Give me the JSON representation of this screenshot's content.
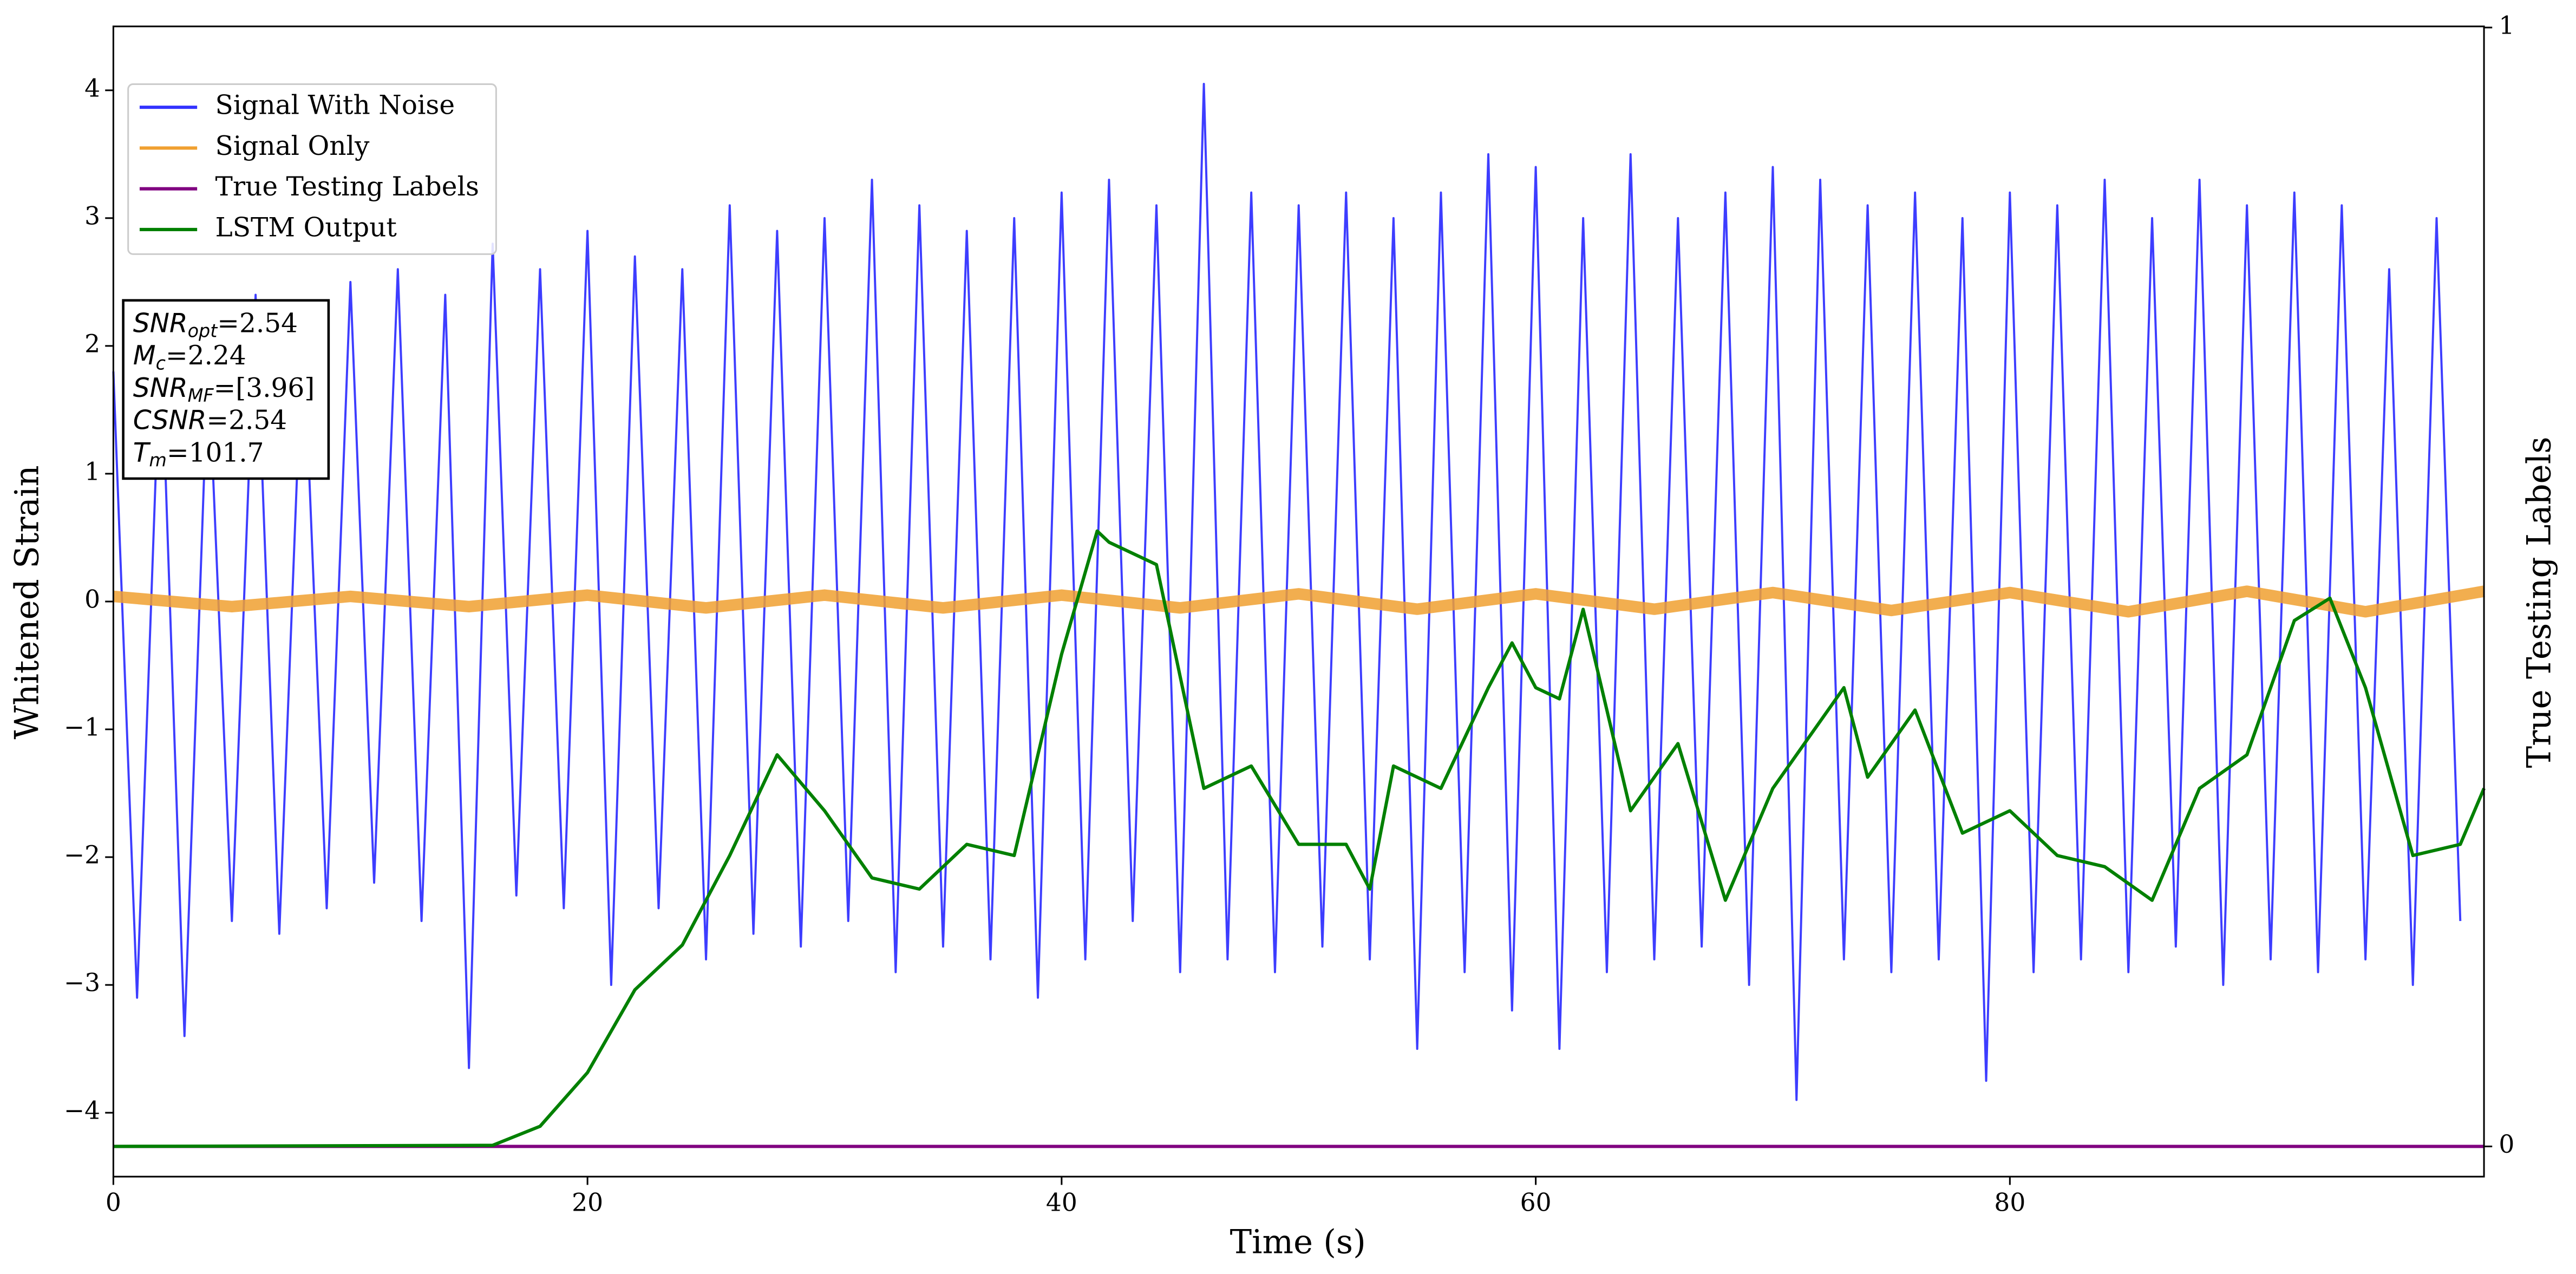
{
  "chart_data": {
    "type": "line",
    "xlabel": "Time (s)",
    "ylabel": "Whitened Strain",
    "y2label": "True Testing Labels",
    "xlim": [
      0,
      100
    ],
    "xticks": [
      0,
      20,
      40,
      60,
      80
    ],
    "ylim": [
      -4.5,
      4.5
    ],
    "yticks": [
      -4,
      -3,
      -2,
      -1,
      0,
      1,
      2,
      3,
      4
    ],
    "y2lim": [
      -0.027,
      1.001
    ],
    "y2ticks": [
      0,
      1
    ],
    "legend": "upper left",
    "annotation_lines": [
      [
        "SNR",
        "opt",
        "=2.54"
      ],
      [
        "M",
        "c",
        "=2.24"
      ],
      [
        "SNR",
        "MF",
        "=[3.96]"
      ],
      [
        "CSNR",
        "=2.54"
      ],
      [
        "T",
        "m",
        "=101.7"
      ]
    ],
    "series": [
      {
        "name": "Signal With Noise",
        "color": "#3333ff",
        "x": [
          0,
          1,
          2,
          3,
          4,
          5,
          6,
          7,
          8,
          9,
          10,
          11,
          12,
          13,
          14,
          15,
          16,
          17,
          18,
          19,
          20,
          21,
          22,
          23,
          24,
          25,
          26,
          27,
          28,
          29,
          30,
          31,
          32,
          33,
          34,
          35,
          36,
          37,
          38,
          39,
          40,
          41,
          42,
          43,
          44,
          45,
          46,
          47,
          48,
          49,
          50,
          51,
          52,
          53,
          54,
          55,
          56,
          57,
          58,
          59,
          60,
          61,
          62,
          63,
          64,
          65,
          66,
          67,
          68,
          69,
          70,
          71,
          72,
          73,
          74,
          75,
          76,
          77,
          78,
          79,
          80,
          81,
          82,
          83,
          84,
          85,
          86,
          87,
          88,
          89,
          90,
          91,
          92,
          93,
          94,
          95,
          96,
          97,
          98,
          99
        ],
        "values": [
          1.8,
          -3.1,
          2.1,
          -3.4,
          1.9,
          -2.5,
          2.4,
          -2.6,
          2.2,
          -2.4,
          2.5,
          -2.2,
          2.6,
          -2.5,
          2.4,
          -3.65,
          2.8,
          -2.3,
          2.6,
          -2.4,
          2.9,
          -3.0,
          2.7,
          -2.4,
          2.6,
          -2.8,
          3.1,
          -2.6,
          2.9,
          -2.7,
          3.0,
          -2.5,
          3.3,
          -2.9,
          3.1,
          -2.7,
          2.9,
          -2.8,
          3.0,
          -3.1,
          3.2,
          -2.8,
          3.3,
          -2.5,
          3.1,
          -2.9,
          4.05,
          -2.8,
          3.2,
          -2.9,
          3.1,
          -2.7,
          3.2,
          -2.8,
          3.0,
          -3.5,
          3.2,
          -2.9,
          3.5,
          -3.2,
          3.4,
          -3.5,
          3.0,
          -2.9,
          3.5,
          -2.8,
          3.0,
          -2.7,
          3.2,
          -3.0,
          3.4,
          -3.9,
          3.3,
          -2.8,
          3.1,
          -2.9,
          3.2,
          -2.8,
          3.0,
          -3.75,
          3.2,
          -2.9,
          3.1,
          -2.8,
          3.3,
          -2.9,
          3.0,
          -2.7,
          3.3,
          -3.0,
          3.1,
          -2.8,
          3.2,
          -2.9,
          3.1,
          -2.8,
          2.6,
          -3.0,
          3.0,
          -2.5
        ]
      },
      {
        "name": "Signal Only",
        "color": "#f0a030",
        "x": [
          0,
          5,
          10,
          15,
          20,
          25,
          30,
          35,
          40,
          45,
          50,
          55,
          60,
          65,
          70,
          75,
          80,
          85,
          90,
          95,
          100
        ],
        "values": [
          0.04,
          -0.04,
          0.04,
          -0.04,
          0.05,
          -0.05,
          0.05,
          -0.05,
          0.05,
          -0.05,
          0.06,
          -0.06,
          0.06,
          -0.06,
          0.07,
          -0.07,
          0.07,
          -0.08,
          0.08,
          -0.08,
          0.08
        ]
      },
      {
        "name": "True Testing Labels",
        "color": "#800080",
        "axis": "y2",
        "x": [
          0,
          100
        ],
        "values": [
          0,
          0
        ]
      },
      {
        "name": "LSTM Output",
        "color": "#008000",
        "axis": "y2",
        "x": [
          0,
          16,
          18,
          20,
          22,
          24,
          26,
          28,
          30,
          32,
          34,
          36,
          38,
          40,
          41.5,
          42,
          44,
          46,
          48,
          50,
          52,
          53,
          54,
          56,
          58,
          59,
          60,
          61,
          62,
          64,
          66,
          68,
          70,
          72,
          73,
          74,
          76,
          78,
          80,
          82,
          84,
          86,
          88,
          90,
          92,
          93.5,
          95,
          97,
          99,
          100
        ],
        "values": [
          0,
          0.001,
          0.018,
          0.066,
          0.14,
          0.18,
          0.26,
          0.35,
          0.3,
          0.24,
          0.23,
          0.27,
          0.26,
          0.44,
          0.55,
          0.54,
          0.52,
          0.32,
          0.34,
          0.27,
          0.27,
          0.23,
          0.34,
          0.32,
          0.41,
          0.45,
          0.41,
          0.4,
          0.48,
          0.3,
          0.36,
          0.22,
          0.32,
          0.38,
          0.41,
          0.33,
          0.39,
          0.28,
          0.3,
          0.26,
          0.25,
          0.22,
          0.32,
          0.35,
          0.47,
          0.49,
          0.41,
          0.26,
          0.27,
          0.32
        ]
      }
    ]
  }
}
